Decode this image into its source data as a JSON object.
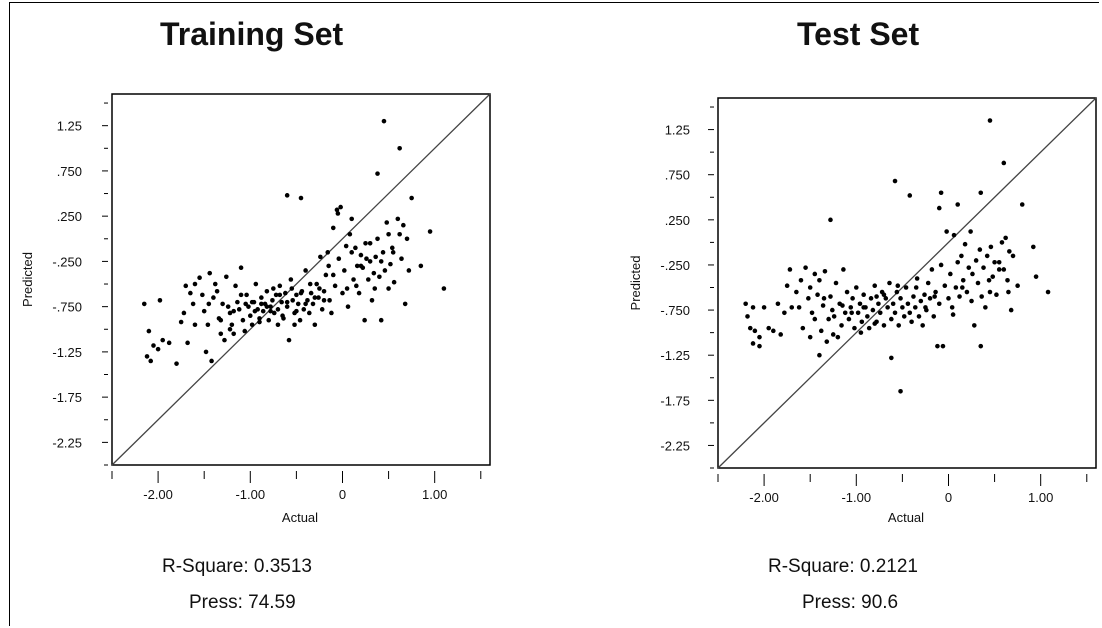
{
  "chart_data": [
    {
      "type": "scatter",
      "title": "Training Set",
      "xlabel": "Actual",
      "ylabel": "Predicted",
      "xlim": [
        -2.5,
        1.6
      ],
      "ylim": [
        -2.5,
        1.6
      ],
      "x_ticks": [
        "-2.00",
        "-1.00",
        "0",
        "1.00"
      ],
      "y_ticks": [
        "1.25",
        ".750",
        ".250",
        "-.250",
        "-.750",
        "-1.25",
        "-1.75",
        "-2.25"
      ],
      "diagonal": true,
      "stats": {
        "r_square": "R-Square: 0.3513",
        "press": "Press: 74.59"
      },
      "points": [
        [
          -2.15,
          -0.72
        ],
        [
          -2.1,
          -1.02
        ],
        [
          -2.12,
          -1.3
        ],
        [
          -2.08,
          -1.35
        ],
        [
          -2.05,
          -1.18
        ],
        [
          -1.98,
          -0.68
        ],
        [
          -2.0,
          -1.22
        ],
        [
          -1.95,
          -1.12
        ],
        [
          -1.88,
          -1.15
        ],
        [
          -1.8,
          -1.38
        ],
        [
          -1.75,
          -0.92
        ],
        [
          -1.72,
          -0.82
        ],
        [
          -1.7,
          -0.52
        ],
        [
          -1.68,
          -1.15
        ],
        [
          -1.65,
          -0.6
        ],
        [
          -1.62,
          -0.72
        ],
        [
          -1.6,
          -0.5
        ],
        [
          -1.55,
          -0.43
        ],
        [
          -1.52,
          -0.62
        ],
        [
          -1.5,
          -0.8
        ],
        [
          -1.48,
          -1.25
        ],
        [
          -1.46,
          -0.95
        ],
        [
          -1.44,
          -0.38
        ],
        [
          -1.42,
          -1.35
        ],
        [
          -1.4,
          -0.65
        ],
        [
          -1.38,
          -0.5
        ],
        [
          -1.36,
          -0.58
        ],
        [
          -1.34,
          -0.88
        ],
        [
          -1.32,
          -1.05
        ],
        [
          -1.3,
          -0.72
        ],
        [
          -1.28,
          -1.12
        ],
        [
          -1.26,
          -0.42
        ],
        [
          -1.24,
          -0.75
        ],
        [
          -1.22,
          -0.82
        ],
        [
          -1.2,
          -0.95
        ],
        [
          -1.18,
          -1.05
        ],
        [
          -1.16,
          -0.52
        ],
        [
          -1.14,
          -0.7
        ],
        [
          -1.12,
          -0.78
        ],
        [
          -1.1,
          -0.32
        ],
        [
          -1.08,
          -0.9
        ],
        [
          -1.06,
          -1.02
        ],
        [
          -1.04,
          -0.62
        ],
        [
          -1.02,
          -0.75
        ],
        [
          -1.0,
          -0.85
        ],
        [
          -0.98,
          -0.95
        ],
        [
          -0.96,
          -0.7
        ],
        [
          -0.94,
          -0.5
        ],
        [
          -0.92,
          -0.78
        ],
        [
          -0.9,
          -0.88
        ],
        [
          -0.88,
          -0.65
        ],
        [
          -0.86,
          -0.8
        ],
        [
          -0.84,
          -0.72
        ],
        [
          -0.82,
          -0.58
        ],
        [
          -0.8,
          -0.9
        ],
        [
          -0.78,
          -0.75
        ],
        [
          -0.76,
          -0.68
        ],
        [
          -0.74,
          -0.82
        ],
        [
          -0.72,
          -0.62
        ],
        [
          -0.7,
          -0.78
        ],
        [
          -0.68,
          -0.52
        ],
        [
          -0.66,
          -0.7
        ],
        [
          -0.64,
          -0.88
        ],
        [
          -0.62,
          -0.6
        ],
        [
          -0.6,
          -0.75
        ],
        [
          -0.58,
          -1.12
        ],
        [
          -0.56,
          -0.45
        ],
        [
          -0.54,
          -0.68
        ],
        [
          -0.52,
          -0.82
        ],
        [
          -0.5,
          -0.62
        ],
        [
          -0.48,
          -0.72
        ],
        [
          -0.46,
          -0.9
        ],
        [
          -0.44,
          -0.58
        ],
        [
          -0.42,
          -0.78
        ],
        [
          -0.4,
          -0.35
        ],
        [
          -0.38,
          -0.68
        ],
        [
          -0.36,
          -0.82
        ],
        [
          -0.34,
          -0.6
        ],
        [
          -0.32,
          -0.72
        ],
        [
          -0.3,
          -0.95
        ],
        [
          -0.28,
          -0.5
        ],
        [
          -0.26,
          -0.65
        ],
        [
          -0.24,
          -0.2
        ],
        [
          -0.22,
          -0.78
        ],
        [
          -0.2,
          -0.58
        ],
        [
          -0.18,
          -0.4
        ],
        [
          -0.16,
          -0.15
        ],
        [
          -0.14,
          -0.68
        ],
        [
          -0.12,
          -0.82
        ],
        [
          -0.1,
          0.12
        ],
        [
          -0.08,
          -0.52
        ],
        [
          -0.06,
          0.32
        ],
        [
          -0.04,
          -0.22
        ],
        [
          -0.02,
          0.35
        ],
        [
          0.0,
          -0.6
        ],
        [
          0.02,
          -0.35
        ],
        [
          0.04,
          -0.08
        ],
        [
          0.06,
          -0.75
        ],
        [
          0.08,
          0.05
        ],
        [
          0.1,
          0.22
        ],
        [
          0.12,
          -0.45
        ],
        [
          0.14,
          -0.1
        ],
        [
          0.16,
          -0.3
        ],
        [
          0.18,
          -0.6
        ],
        [
          0.2,
          -0.18
        ],
        [
          0.22,
          -0.32
        ],
        [
          0.24,
          -0.9
        ],
        [
          0.26,
          -0.22
        ],
        [
          0.28,
          -0.45
        ],
        [
          0.3,
          -0.05
        ],
        [
          0.32,
          -0.68
        ],
        [
          0.34,
          -0.38
        ],
        [
          0.36,
          -0.2
        ],
        [
          0.38,
          0.0
        ],
        [
          0.4,
          -0.42
        ],
        [
          0.42,
          -0.9
        ],
        [
          0.44,
          -0.15
        ],
        [
          0.46,
          -0.35
        ],
        [
          0.48,
          0.18
        ],
        [
          0.5,
          -0.55
        ],
        [
          0.52,
          -0.28
        ],
        [
          0.54,
          -0.1
        ],
        [
          0.56,
          -0.48
        ],
        [
          0.6,
          0.22
        ],
        [
          0.62,
          0.05
        ],
        [
          0.64,
          -0.22
        ],
        [
          0.66,
          0.15
        ],
        [
          0.68,
          -0.72
        ],
        [
          0.7,
          0.0
        ],
        [
          0.72,
          -0.35
        ],
        [
          0.75,
          0.45
        ],
        [
          0.85,
          -0.3
        ],
        [
          0.95,
          0.08
        ],
        [
          1.1,
          -0.55
        ],
        [
          0.38,
          0.72
        ],
        [
          0.62,
          1.0
        ],
        [
          0.45,
          1.3
        ],
        [
          -0.6,
          0.48
        ],
        [
          -0.45,
          0.45
        ],
        [
          -0.05,
          0.28
        ],
        [
          -0.15,
          -0.3
        ],
        [
          -0.55,
          -0.55
        ],
        [
          -0.35,
          -0.5
        ],
        [
          -0.25,
          -0.55
        ],
        [
          -0.82,
          -0.75
        ],
        [
          -1.05,
          -0.72
        ],
        [
          -1.18,
          -0.8
        ],
        [
          -0.9,
          -0.92
        ],
        [
          -0.7,
          -0.95
        ],
        [
          -0.65,
          -0.85
        ],
        [
          -0.95,
          -0.8
        ],
        [
          -1.22,
          -1.0
        ],
        [
          -1.32,
          -0.9
        ],
        [
          -0.88,
          -0.72
        ],
        [
          -0.78,
          -0.8
        ],
        [
          -0.6,
          -0.7
        ],
        [
          -0.5,
          -0.8
        ],
        [
          -0.4,
          -0.72
        ],
        [
          -0.3,
          -0.65
        ],
        [
          -0.2,
          -0.68
        ],
        [
          0.05,
          -0.55
        ],
        [
          0.15,
          -0.52
        ],
        [
          0.25,
          -0.05
        ],
        [
          0.3,
          -0.25
        ],
        [
          0.42,
          -0.25
        ],
        [
          0.5,
          0.05
        ],
        [
          0.55,
          -0.15
        ],
        [
          0.35,
          -0.55
        ],
        [
          0.2,
          -0.3
        ],
        [
          0.1,
          -0.15
        ],
        [
          -0.1,
          -0.4
        ],
        [
          -0.45,
          -0.6
        ],
        [
          -0.75,
          -0.55
        ],
        [
          -1.1,
          -0.62
        ],
        [
          -1.45,
          -0.72
        ],
        [
          -1.6,
          -0.95
        ],
        [
          -0.98,
          -0.7
        ],
        [
          -0.68,
          -0.62
        ],
        [
          -0.52,
          -0.95
        ]
      ]
    },
    {
      "type": "scatter",
      "title": "Test Set",
      "xlabel": "Actual",
      "ylabel": "Predicted",
      "xlim": [
        -2.5,
        1.6
      ],
      "ylim": [
        -2.5,
        1.6
      ],
      "x_ticks": [
        "-2.00",
        "-1.00",
        "0",
        "1.00"
      ],
      "y_ticks": [
        "1.25",
        ".750",
        ".250",
        "-.250",
        "-.750",
        "-1.25",
        "-1.75",
        "-2.25"
      ],
      "diagonal": true,
      "stats": {
        "r_square": "R-Square: 0.2121",
        "press": "Press: 90.6"
      },
      "points": [
        [
          -2.2,
          -0.68
        ],
        [
          -2.18,
          -0.82
        ],
        [
          -2.15,
          -0.95
        ],
        [
          -2.12,
          -1.12
        ],
        [
          -2.1,
          -0.98
        ],
        [
          -2.05,
          -1.05
        ],
        [
          -2.05,
          -1.15
        ],
        [
          -2.0,
          -0.72
        ],
        [
          -1.95,
          -0.95
        ],
        [
          -1.9,
          -0.98
        ],
        [
          -1.82,
          -1.02
        ],
        [
          -1.78,
          -0.78
        ],
        [
          -1.75,
          -0.48
        ],
        [
          -1.72,
          -0.3
        ],
        [
          -1.7,
          -0.72
        ],
        [
          -1.65,
          -0.55
        ],
        [
          -1.6,
          -0.42
        ],
        [
          -1.58,
          -0.95
        ],
        [
          -1.55,
          -0.28
        ],
        [
          -1.52,
          -0.62
        ],
        [
          -1.5,
          -0.5
        ],
        [
          -1.48,
          -0.78
        ],
        [
          -1.45,
          -0.85
        ],
        [
          -1.42,
          -0.58
        ],
        [
          -1.4,
          -0.42
        ],
        [
          -1.38,
          -0.98
        ],
        [
          -1.36,
          -0.7
        ],
        [
          -1.34,
          -0.32
        ],
        [
          -1.32,
          -1.1
        ],
        [
          -1.3,
          -0.85
        ],
        [
          -1.28,
          -0.6
        ],
        [
          -1.26,
          -0.75
        ],
        [
          -1.24,
          -0.82
        ],
        [
          -1.22,
          -0.45
        ],
        [
          -1.2,
          -1.05
        ],
        [
          -1.18,
          -0.68
        ],
        [
          -1.16,
          -0.92
        ],
        [
          -1.14,
          -0.3
        ],
        [
          -1.12,
          -0.78
        ],
        [
          -1.1,
          -0.55
        ],
        [
          -1.08,
          -0.85
        ],
        [
          -1.06,
          -0.72
        ],
        [
          -1.04,
          -0.62
        ],
        [
          -1.02,
          -0.95
        ],
        [
          -1.0,
          -0.5
        ],
        [
          -0.98,
          -0.78
        ],
        [
          -0.96,
          -0.68
        ],
        [
          -0.94,
          -0.88
        ],
        [
          -0.92,
          -0.58
        ],
        [
          -0.9,
          -0.72
        ],
        [
          -0.88,
          -0.82
        ],
        [
          -0.86,
          -0.95
        ],
        [
          -0.84,
          -0.62
        ],
        [
          -0.82,
          -0.75
        ],
        [
          -0.8,
          -0.48
        ],
        [
          -0.78,
          -0.88
        ],
        [
          -0.76,
          -0.68
        ],
        [
          -0.74,
          -0.78
        ],
        [
          -0.72,
          -0.55
        ],
        [
          -0.7,
          -0.92
        ],
        [
          -0.68,
          -0.62
        ],
        [
          -0.66,
          -0.72
        ],
        [
          -0.64,
          -0.45
        ],
        [
          -0.62,
          -0.85
        ],
        [
          -0.6,
          -0.68
        ],
        [
          -0.58,
          -0.78
        ],
        [
          -0.56,
          -0.55
        ],
        [
          -0.54,
          -0.92
        ],
        [
          -0.52,
          -0.62
        ],
        [
          -0.5,
          -0.72
        ],
        [
          -0.48,
          -0.82
        ],
        [
          -0.46,
          -0.5
        ],
        [
          -0.44,
          -0.68
        ],
        [
          -0.42,
          -0.78
        ],
        [
          -0.4,
          -0.88
        ],
        [
          -0.38,
          -0.6
        ],
        [
          -0.36,
          -0.72
        ],
        [
          -0.34,
          -0.4
        ],
        [
          -0.32,
          -0.82
        ],
        [
          -0.3,
          -0.65
        ],
        [
          -0.28,
          -0.92
        ],
        [
          -0.26,
          -0.58
        ],
        [
          -0.24,
          -0.75
        ],
        [
          -0.22,
          -0.45
        ],
        [
          -0.2,
          -0.62
        ],
        [
          -0.18,
          -0.3
        ],
        [
          -0.16,
          -0.82
        ],
        [
          -0.14,
          -0.55
        ],
        [
          -0.12,
          -1.15
        ],
        [
          -0.1,
          -0.68
        ],
        [
          -0.08,
          -0.25
        ],
        [
          -0.06,
          -1.15
        ],
        [
          -0.04,
          -0.48
        ],
        [
          -0.02,
          0.12
        ],
        [
          0.0,
          -0.62
        ],
        [
          0.02,
          -0.35
        ],
        [
          0.04,
          -0.72
        ],
        [
          0.06,
          0.08
        ],
        [
          0.08,
          -0.5
        ],
        [
          0.1,
          -0.22
        ],
        [
          0.12,
          -0.6
        ],
        [
          0.14,
          -0.15
        ],
        [
          0.16,
          -0.42
        ],
        [
          0.18,
          -0.02
        ],
        [
          0.2,
          -0.55
        ],
        [
          0.22,
          -0.28
        ],
        [
          0.24,
          0.12
        ],
        [
          0.26,
          -0.35
        ],
        [
          0.28,
          -0.92
        ],
        [
          0.3,
          -0.2
        ],
        [
          0.32,
          -0.45
        ],
        [
          0.34,
          -0.08
        ],
        [
          0.36,
          -0.6
        ],
        [
          0.38,
          -0.28
        ],
        [
          0.4,
          -0.72
        ],
        [
          0.42,
          -0.15
        ],
        [
          0.44,
          -0.42
        ],
        [
          0.46,
          -0.05
        ],
        [
          0.48,
          -0.38
        ],
        [
          0.5,
          -0.22
        ],
        [
          0.52,
          -0.58
        ],
        [
          0.55,
          -0.22
        ],
        [
          0.58,
          0.0
        ],
        [
          0.6,
          -0.3
        ],
        [
          0.62,
          0.05
        ],
        [
          0.64,
          -0.42
        ],
        [
          0.66,
          -0.1
        ],
        [
          0.68,
          -0.75
        ],
        [
          0.7,
          -0.15
        ],
        [
          0.75,
          -0.48
        ],
        [
          0.8,
          0.42
        ],
        [
          0.92,
          -0.05
        ],
        [
          1.08,
          -0.55
        ],
        [
          0.95,
          -0.38
        ],
        [
          0.45,
          1.35
        ],
        [
          0.6,
          0.88
        ],
        [
          0.35,
          0.55
        ],
        [
          -0.58,
          0.68
        ],
        [
          -0.42,
          0.52
        ],
        [
          -0.08,
          0.55
        ],
        [
          -0.1,
          0.38
        ],
        [
          0.1,
          0.42
        ],
        [
          -1.28,
          0.25
        ],
        [
          -0.92,
          -0.72
        ],
        [
          -0.78,
          -0.6
        ],
        [
          -1.15,
          -0.7
        ],
        [
          -0.62,
          -1.28
        ],
        [
          -0.52,
          -1.65
        ],
        [
          -0.8,
          -0.9
        ],
        [
          -0.7,
          -0.58
        ],
        [
          -1.05,
          -0.78
        ],
        [
          -1.35,
          -0.62
        ],
        [
          -1.45,
          -0.35
        ],
        [
          -1.85,
          -0.68
        ],
        [
          -2.12,
          -0.72
        ],
        [
          -1.62,
          -0.72
        ],
        [
          -0.55,
          -0.48
        ],
        [
          -0.35,
          -0.5
        ],
        [
          -0.25,
          -0.72
        ],
        [
          -0.15,
          -0.6
        ],
        [
          0.05,
          -0.8
        ],
        [
          0.15,
          -0.5
        ],
        [
          0.25,
          -0.65
        ],
        [
          0.35,
          -1.15
        ],
        [
          0.45,
          -0.55
        ],
        [
          0.55,
          -0.3
        ],
        [
          0.65,
          -0.55
        ],
        [
          -0.95,
          -1.0
        ],
        [
          -1.25,
          -1.02
        ],
        [
          -1.4,
          -1.25
        ],
        [
          -1.5,
          -1.05
        ]
      ]
    }
  ]
}
